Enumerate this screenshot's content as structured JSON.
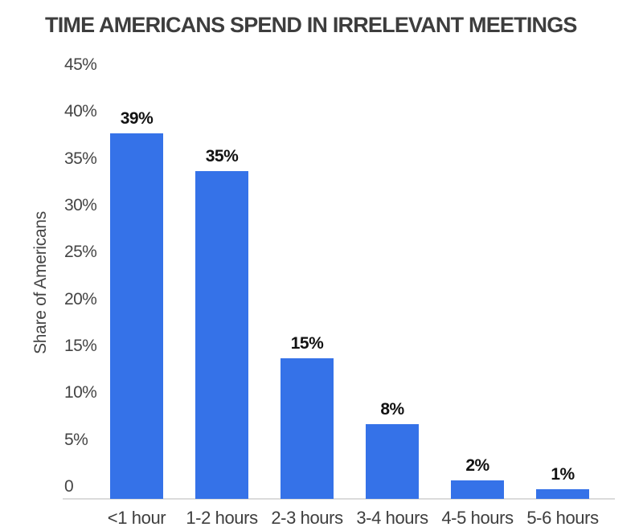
{
  "chart_data": {
    "type": "bar",
    "title": "TIME AMERICANS SPEND IN IRRELEVANT MEETINGS",
    "xlabel": "",
    "ylabel": "Share of Americans",
    "categories": [
      "<1 hour",
      "1-2 hours",
      "2-3 hours",
      "3-4 hours",
      "4-5 hours",
      "5-6 hours"
    ],
    "values": [
      39,
      35,
      15,
      8,
      2,
      1
    ],
    "value_labels": [
      "39%",
      "35%",
      "15%",
      "8%",
      "2%",
      "1%"
    ],
    "ylim": [
      0,
      45
    ],
    "yticks": [
      0,
      5,
      10,
      15,
      20,
      25,
      30,
      35,
      40,
      45
    ],
    "ytick_labels": [
      "0",
      "5%",
      "10%",
      "15%",
      "20%",
      "25%",
      "30%",
      "35%",
      "40%",
      "45%"
    ],
    "grid": false,
    "legend_position": "none",
    "colors": {
      "bar": "#3572e8",
      "title_text": "#3d3d3d",
      "axis_text": "#454545",
      "category_text": "#3e3e3e",
      "value_label_text": "#121212",
      "axis_line": "#dbdbdb",
      "background": "#ffffff"
    }
  }
}
